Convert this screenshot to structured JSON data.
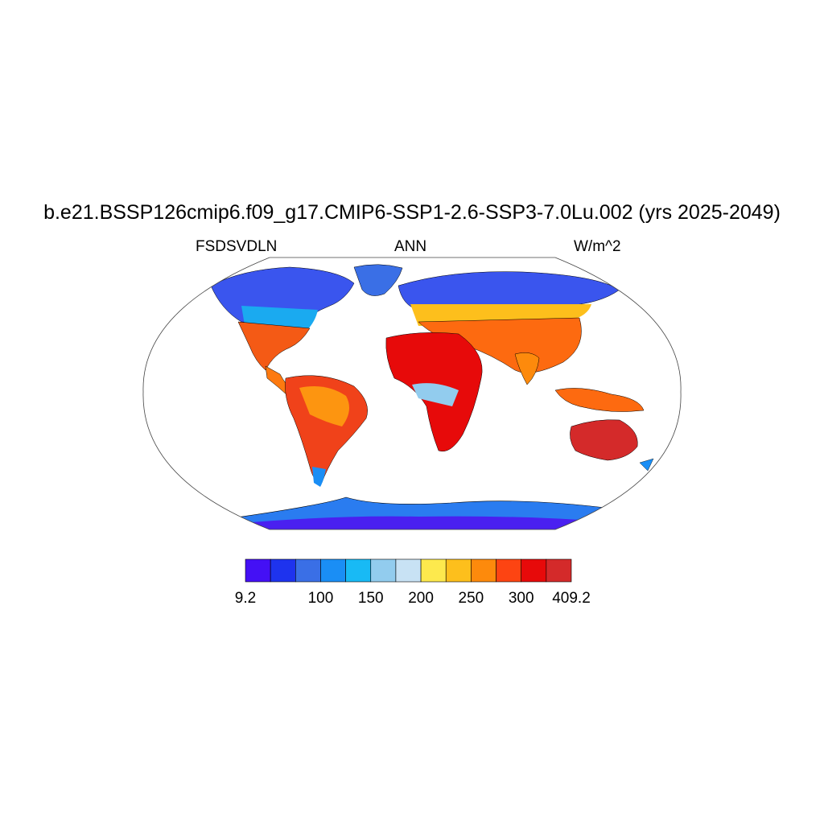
{
  "title": "b.e21.BSSP126cmip6.f09_g17.CMIP6-SSP1-2.6-SSP3-7.0Lu.002 (yrs 2025-2049)",
  "left_label": "FSDSVDLN",
  "center_label": "ANN",
  "right_label": "W/m^2",
  "projection": "Robinson",
  "colorbar": {
    "colors": [
      "#4410f5",
      "#1e33ee",
      "#3a6fe6",
      "#1a8ef5",
      "#18baf5",
      "#92ccee",
      "#c8e2f4",
      "#fde94d",
      "#fdbf1c",
      "#fd8a0c",
      "#fd4412",
      "#e70a0a",
      "#d42a2a"
    ],
    "tick_labels": [
      "9.2",
      "100",
      "150",
      "200",
      "250",
      "300",
      "409.2"
    ],
    "min": 9.2,
    "max": 409.2
  },
  "map_colors": {
    "land_outline": "#000000",
    "ocean": "#ffffff",
    "frame": "#444444"
  }
}
